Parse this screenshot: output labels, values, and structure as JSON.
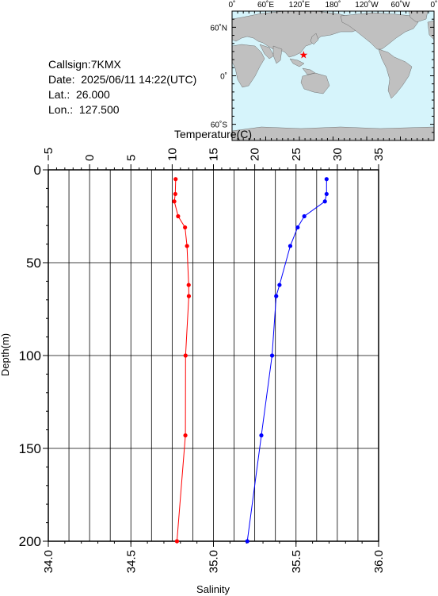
{
  "header": {
    "callsign": "Callsign:7KMX",
    "date": "Date:  2025/06/11 14:22(UTC)",
    "lat": "Lat.:  26.000",
    "lon": "Lon.:  127.500"
  },
  "map": {
    "lon_labels": [
      "0˚",
      "60˚E",
      "120˚E",
      "180˚",
      "120˚W",
      "60˚W",
      "0˚"
    ],
    "lat_labels": [
      "60˚N",
      "0˚",
      "60˚S"
    ],
    "station": {
      "lat": 26.0,
      "lon": 127.5
    },
    "ocean_color": "#d6f4fb",
    "land_color": "#c0c0c0",
    "marker_color": "#ff0000"
  },
  "chart_data": {
    "type": "line",
    "top_axis_label": "Temperature(C)",
    "bottom_axis_label": "Salinity",
    "y_axis_label": "Depth(m)",
    "depth_range": [
      0,
      200
    ],
    "depth_ticks": [
      "0",
      "50",
      "100",
      "150",
      "200"
    ],
    "temperature_range": [
      -5,
      35
    ],
    "temperature_ticks": [
      "−5",
      "0",
      "5",
      "10",
      "15",
      "20",
      "25",
      "30",
      "35"
    ],
    "salinity_range": [
      34.0,
      36.0
    ],
    "salinity_ticks": [
      "34.0",
      "34.5",
      "35.0",
      "35.5",
      "36.0"
    ],
    "grid": true,
    "series": [
      {
        "color": "#0000ff",
        "axis": "temperature",
        "points": [
          {
            "depth": 5,
            "value": 28.7
          },
          {
            "depth": 13,
            "value": 28.7
          },
          {
            "depth": 17,
            "value": 28.5
          },
          {
            "depth": 25,
            "value": 26.0
          },
          {
            "depth": 31,
            "value": 25.2
          },
          {
            "depth": 41,
            "value": 24.3
          },
          {
            "depth": 62,
            "value": 23.0
          },
          {
            "depth": 68,
            "value": 22.6
          },
          {
            "depth": 100,
            "value": 22.1
          },
          {
            "depth": 143,
            "value": 20.8
          },
          {
            "depth": 200,
            "value": 19.1
          }
        ]
      },
      {
        "color": "#ff0000",
        "axis": "salinity",
        "points": [
          {
            "depth": 5,
            "value": 34.771
          },
          {
            "depth": 13,
            "value": 34.769
          },
          {
            "depth": 17,
            "value": 34.763
          },
          {
            "depth": 25,
            "value": 34.786
          },
          {
            "depth": 31,
            "value": 34.828
          },
          {
            "depth": 41,
            "value": 34.84
          },
          {
            "depth": 62,
            "value": 34.85
          },
          {
            "depth": 68,
            "value": 34.851
          },
          {
            "depth": 100,
            "value": 34.831
          },
          {
            "depth": 143,
            "value": 34.83
          },
          {
            "depth": 200,
            "value": 34.779
          }
        ]
      }
    ]
  }
}
